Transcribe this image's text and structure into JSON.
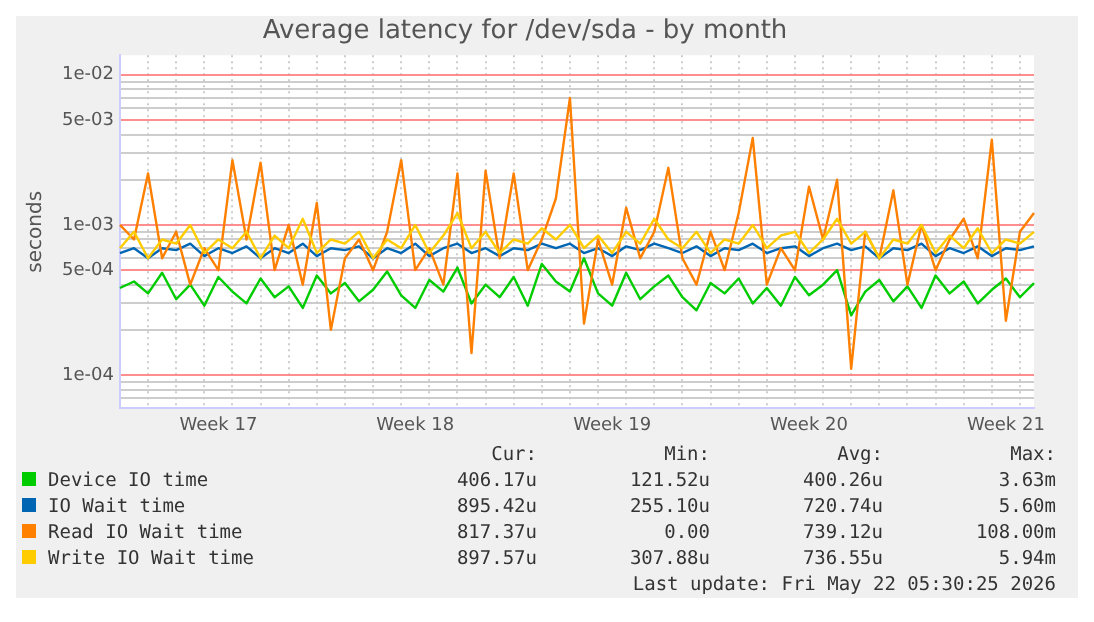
{
  "chart_data": {
    "type": "line",
    "title": "Average latency for /dev/sda - by month",
    "ylabel": "seconds",
    "log": "y",
    "grid": true,
    "legend": "bottom",
    "marker": "none",
    "line_style": "solid",
    "categories": [
      null,
      null,
      null,
      null,
      null,
      null,
      null,
      "Week 17",
      null,
      null,
      null,
      null,
      null,
      null,
      null,
      null,
      null,
      null,
      null,
      null,
      null,
      "Week 18",
      null,
      null,
      null,
      null,
      null,
      null,
      null,
      null,
      null,
      null,
      null,
      null,
      null,
      "Week 19",
      null,
      null,
      null,
      null,
      null,
      null,
      null,
      null,
      null,
      null,
      null,
      null,
      null,
      "Week 20",
      null,
      null,
      null,
      null,
      null,
      null,
      null,
      null,
      null,
      null,
      null,
      null,
      null,
      "Week 21",
      null,
      null
    ],
    "ylim": [
      6e-05,
      0.0135
    ],
    "yticks": [
      {
        "value": 7e-05,
        "label": null
      },
      {
        "value": 8e-05,
        "label": null
      },
      {
        "value": 9e-05,
        "label": null
      },
      {
        "value": 0.0001,
        "label": "1e-04"
      },
      {
        "value": 0.0002,
        "label": null
      },
      {
        "value": 0.0003,
        "label": null
      },
      {
        "value": 0.0004,
        "label": null
      },
      {
        "value": 0.0005,
        "label": "5e-04"
      },
      {
        "value": 0.0006,
        "label": null
      },
      {
        "value": 0.0007,
        "label": null
      },
      {
        "value": 0.0008,
        "label": null
      },
      {
        "value": 0.0009,
        "label": null
      },
      {
        "value": 0.001,
        "label": "1e-03"
      },
      {
        "value": 0.002,
        "label": null
      },
      {
        "value": 0.003,
        "label": null
      },
      {
        "value": 0.004,
        "label": null
      },
      {
        "value": 0.005,
        "label": "5e-03"
      },
      {
        "value": 0.006,
        "label": null
      },
      {
        "value": 0.007,
        "label": null
      },
      {
        "value": 0.008,
        "label": null
      },
      {
        "value": 0.009,
        "label": null
      },
      {
        "value": 0.01,
        "label": "1e-02"
      }
    ],
    "series": [
      {
        "name": "Device IO time",
        "color": "#00cc00",
        "values": [
          0.00038,
          0.00042,
          0.00035,
          0.00048,
          0.00032,
          0.0004,
          0.00029,
          0.00045,
          0.00036,
          0.0003,
          0.00044,
          0.00033,
          0.00039,
          0.00028,
          0.00046,
          0.00035,
          0.00041,
          0.00031,
          0.00037,
          0.00049,
          0.00034,
          0.00028,
          0.00043,
          0.00036,
          0.00052,
          0.0003,
          0.0004,
          0.00033,
          0.00045,
          0.00029,
          0.00055,
          0.00042,
          0.00036,
          0.0006,
          0.00035,
          0.00029,
          0.00048,
          0.00032,
          0.00039,
          0.00046,
          0.00033,
          0.00027,
          0.00041,
          0.00035,
          0.00044,
          0.0003,
          0.00038,
          0.00029,
          0.00045,
          0.00034,
          0.0004,
          0.0005,
          0.00025,
          0.00036,
          0.00043,
          0.00031,
          0.00039,
          0.00028,
          0.00046,
          0.00035,
          0.00042,
          0.0003,
          0.00037,
          0.00044,
          0.00033,
          0.00041
        ]
      },
      {
        "name": "IO Wait time",
        "color": "#0066b3",
        "values": [
          0.00065,
          0.0007,
          0.0006,
          0.0007,
          0.00068,
          0.00075,
          0.00062,
          0.0007,
          0.00065,
          0.00072,
          0.0006,
          0.0007,
          0.00065,
          0.00075,
          0.00062,
          0.0007,
          0.00068,
          0.00072,
          0.0006,
          0.0007,
          0.00065,
          0.00075,
          0.00062,
          0.0007,
          0.00075,
          0.00065,
          0.0007,
          0.00062,
          0.0007,
          0.00068,
          0.00075,
          0.0007,
          0.00075,
          0.00065,
          0.0007,
          0.00062,
          0.00072,
          0.00068,
          0.00075,
          0.0007,
          0.00065,
          0.00072,
          0.00062,
          0.0007,
          0.00068,
          0.00075,
          0.00065,
          0.0007,
          0.00072,
          0.00062,
          0.0007,
          0.00075,
          0.00068,
          0.00072,
          0.0006,
          0.0007,
          0.00068,
          0.00075,
          0.00062,
          0.0007,
          0.00065,
          0.00072,
          0.00062,
          0.0007,
          0.00068,
          0.00072
        ]
      },
      {
        "name": "Read IO Wait time",
        "color": "#ff8000",
        "values": [
          0.001,
          0.0008,
          0.0022,
          0.0006,
          0.0009,
          0.0004,
          0.0007,
          0.0005,
          0.0027,
          0.0008,
          0.0026,
          0.0005,
          0.001,
          0.0004,
          0.0014,
          0.0002,
          0.0006,
          0.0008,
          0.0005,
          0.0009,
          0.0027,
          0.0005,
          0.0007,
          0.0004,
          0.0022,
          0.00014,
          0.0023,
          0.0006,
          0.0022,
          0.0005,
          0.0008,
          0.0015,
          0.007,
          0.00022,
          0.0008,
          0.0004,
          0.0013,
          0.0006,
          0.0009,
          0.0024,
          0.0006,
          0.0004,
          0.0009,
          0.0005,
          0.0012,
          0.0038,
          0.0004,
          0.0007,
          0.0005,
          0.0018,
          0.0008,
          0.002,
          0.00011,
          0.0009,
          0.0006,
          0.0017,
          0.0004,
          0.001,
          0.0005,
          0.0008,
          0.0011,
          0.0006,
          0.0037,
          0.00023,
          0.0009,
          0.0012
        ]
      },
      {
        "name": "Write IO Wait time",
        "color": "#ffcc00",
        "values": [
          0.0007,
          0.0009,
          0.0006,
          0.0008,
          0.00075,
          0.001,
          0.00065,
          0.0008,
          0.0007,
          0.0009,
          0.0006,
          0.00085,
          0.0007,
          0.0011,
          0.00065,
          0.0008,
          0.00075,
          0.0009,
          0.0006,
          0.0008,
          0.0007,
          0.001,
          0.00065,
          0.00085,
          0.0012,
          0.0007,
          0.0009,
          0.00065,
          0.0008,
          0.00075,
          0.00095,
          0.0008,
          0.001,
          0.0007,
          0.00085,
          0.00065,
          0.0009,
          0.00075,
          0.0011,
          0.0008,
          0.0007,
          0.0009,
          0.00065,
          0.0008,
          0.00075,
          0.001,
          0.0007,
          0.00085,
          0.0009,
          0.00065,
          0.0008,
          0.0011,
          0.00075,
          0.0009,
          0.0006,
          0.0008,
          0.00075,
          0.001,
          0.00065,
          0.00085,
          0.0007,
          0.00095,
          0.00065,
          0.0008,
          0.00075,
          0.0009
        ]
      }
    ],
    "annotations": [
      "Cur:",
      "Min:",
      "Avg:",
      "Max:",
      "406.17u",
      "121.52u",
      "400.26u",
      "3.63m",
      "895.42u",
      "255.10u",
      "720.74u",
      "5.60m",
      "817.37u",
      "0.00",
      "739.12u",
      "108.00m",
      "897.57u",
      "307.88u",
      "736.55u",
      "5.94m",
      "Last update: Fri May 22 05:30:25 2026"
    ]
  }
}
